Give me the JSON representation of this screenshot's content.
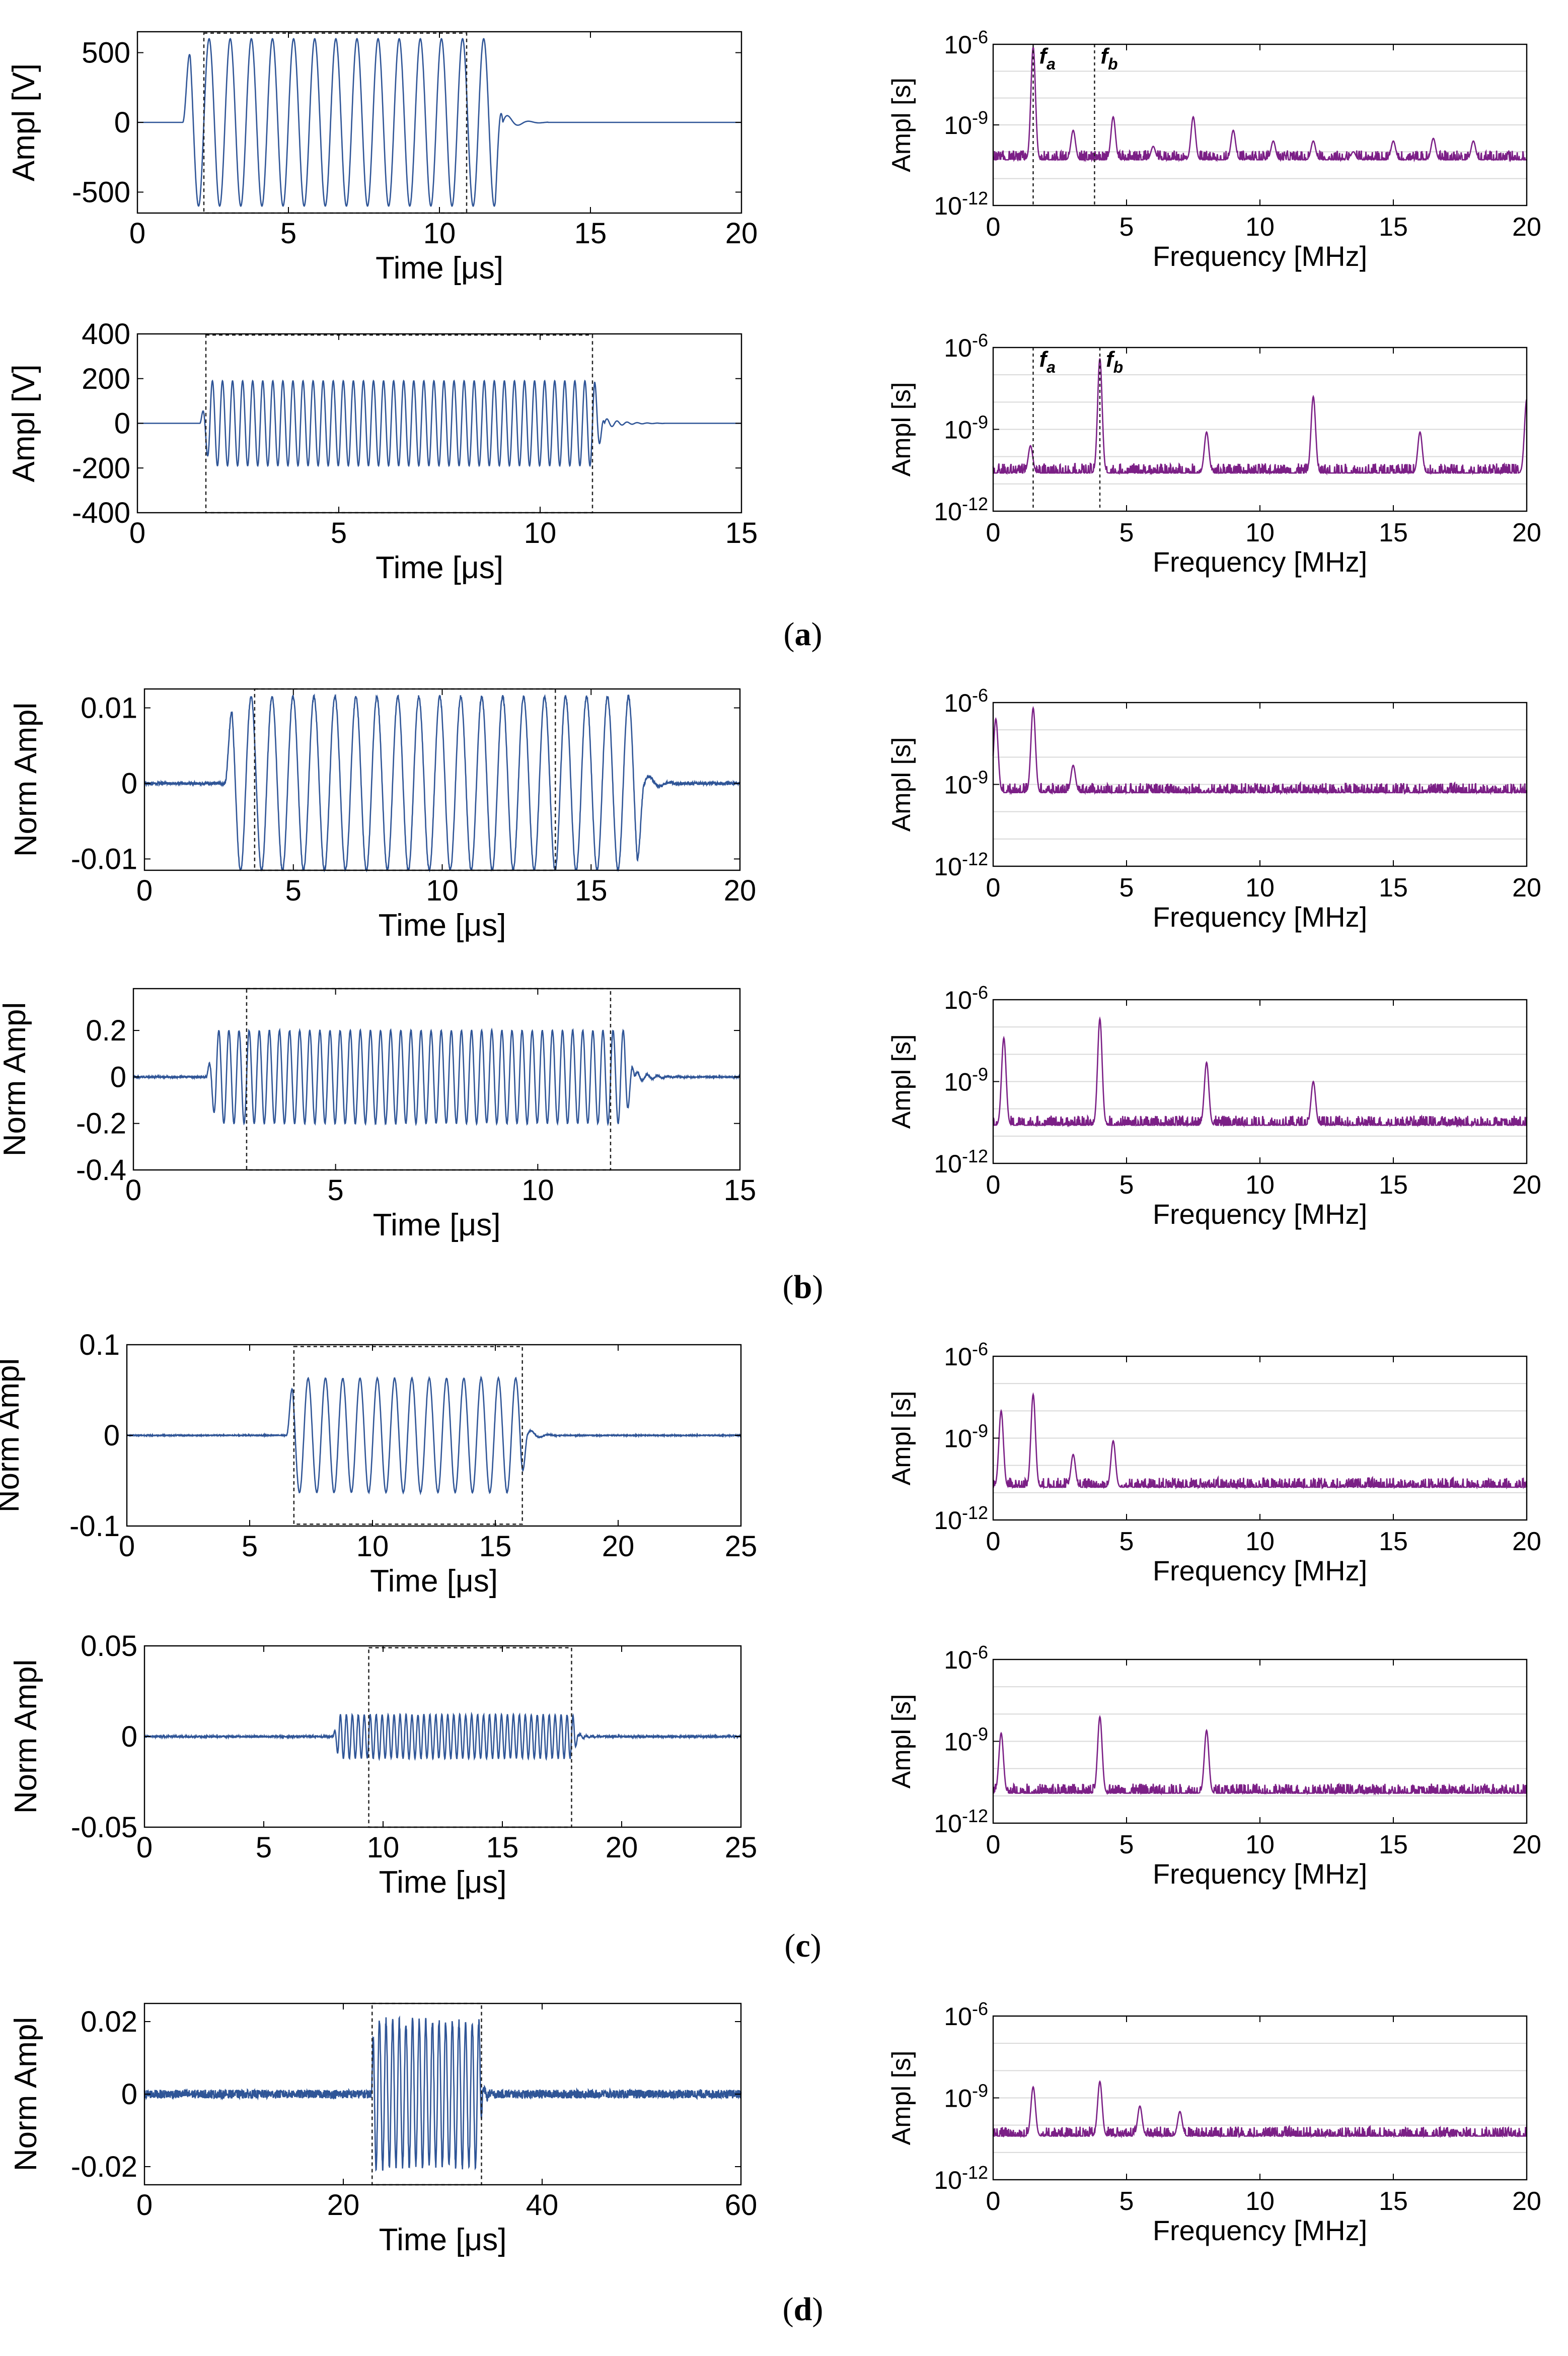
{
  "colors": {
    "time": "#2f5597",
    "freq": "#7b1f86",
    "axis": "#000000",
    "grid": "#d9d9d9",
    "box": "#222222"
  },
  "panels": [
    {
      "id": "a",
      "label_open": "(",
      "label_letter": "a",
      "label_close": ")"
    },
    {
      "id": "b",
      "label_open": "(",
      "label_letter": "b",
      "label_close": ")"
    },
    {
      "id": "c",
      "label_open": "(",
      "label_letter": "c",
      "label_close": ")"
    },
    {
      "id": "d",
      "label_open": "(",
      "label_letter": "d",
      "label_close": ")"
    }
  ],
  "chart_data": [
    {
      "id": "a1-time",
      "type": "line",
      "xlabel": "Time [μs]",
      "ylabel": "Ampl [V]",
      "xlim": [
        0,
        20
      ],
      "ylim": [
        -650,
        650
      ],
      "xticks": [
        0,
        5,
        10,
        15,
        20
      ],
      "yticks": [
        -500,
        0,
        500
      ],
      "signal": {
        "kind": "burst",
        "start": 1.5,
        "end": 12.1,
        "freq_mhz": 1.43,
        "amp": 600,
        "noise": 0
      },
      "window": [
        2.2,
        10.9
      ],
      "window_y": [
        -650,
        640
      ]
    },
    {
      "id": "a1-freq",
      "type": "line",
      "xlabel": "Frequency [MHz]",
      "ylabel": "Ampl [s]",
      "xlim": [
        0,
        20
      ],
      "yscale": "log",
      "ylim_exp": [
        -12,
        -6
      ],
      "xticks": [
        0,
        5,
        10,
        15,
        20
      ],
      "yticks_exp": [
        -12,
        -9,
        -6
      ],
      "spectrum": {
        "floor": -10.3,
        "peaks": [
          [
            1.5,
            -6.1
          ],
          [
            3.0,
            -9.2
          ],
          [
            4.5,
            -8.7
          ],
          [
            6.0,
            -9.8
          ],
          [
            7.5,
            -8.7
          ],
          [
            9.0,
            -9.2
          ],
          [
            10.5,
            -9.6
          ],
          [
            12.0,
            -9.6
          ],
          [
            13.5,
            -10.0
          ],
          [
            15.0,
            -9.6
          ],
          [
            16.5,
            -9.5
          ],
          [
            18.0,
            -9.6
          ]
        ]
      },
      "markers": [
        {
          "x": 1.5,
          "label": "f",
          "sub": "a"
        },
        {
          "x": 3.8,
          "label": "f",
          "sub": "b"
        }
      ]
    },
    {
      "id": "a2-time",
      "type": "line",
      "xlabel": "Time [μs]",
      "ylabel": "Ampl [V]",
      "xlim": [
        0,
        15
      ],
      "ylim": [
        -400,
        400
      ],
      "xticks": [
        0,
        5,
        10,
        15
      ],
      "yticks": [
        -400,
        -200,
        0,
        200,
        400
      ],
      "signal": {
        "kind": "burst",
        "start": 1.55,
        "end": 11.6,
        "freq_mhz": 4.0,
        "amp": 190,
        "noise": 0
      },
      "window": [
        1.7,
        11.3
      ],
      "window_y": [
        -400,
        395
      ]
    },
    {
      "id": "a2-freq",
      "type": "line",
      "xlabel": "Frequency [MHz]",
      "ylabel": "Ampl [s]",
      "xlim": [
        0,
        20
      ],
      "yscale": "log",
      "ylim_exp": [
        -12,
        -6
      ],
      "xticks": [
        0,
        5,
        10,
        15,
        20
      ],
      "yticks_exp": [
        -12,
        -9,
        -6
      ],
      "spectrum": {
        "floor": -10.6,
        "peaks": [
          [
            1.4,
            -9.6
          ],
          [
            4.0,
            -6.4
          ],
          [
            8.0,
            -9.1
          ],
          [
            12.0,
            -7.8
          ],
          [
            16.0,
            -9.1
          ],
          [
            20.0,
            -7.9
          ]
        ]
      },
      "markers": [
        {
          "x": 1.5,
          "label": "f",
          "sub": "a"
        },
        {
          "x": 4.0,
          "label": "f",
          "sub": "b"
        }
      ]
    },
    {
      "id": "b1-time",
      "type": "line",
      "xlabel": "Time [μs]",
      "ylabel": "Norm Ampl",
      "xlim": [
        0,
        20
      ],
      "ylim": [
        -0.0115,
        0.0125
      ],
      "xticks": [
        0,
        5,
        10,
        15,
        20
      ],
      "yticks": [
        -0.01,
        0,
        0.01
      ],
      "signal": {
        "kind": "burst",
        "start": 2.7,
        "end": 16.8,
        "freq_mhz": 1.42,
        "amp": 0.0115,
        "noise": 0.0002
      },
      "window": [
        3.7,
        13.8
      ],
      "window_y": [
        -0.0115,
        0.0125
      ]
    },
    {
      "id": "b1-freq",
      "type": "line",
      "xlabel": "Frequency [MHz]",
      "ylabel": "Ampl [s]",
      "xlim": [
        0,
        20
      ],
      "yscale": "log",
      "ylim_exp": [
        -12,
        -6
      ],
      "xticks": [
        0,
        5,
        10,
        15,
        20
      ],
      "yticks_exp": [
        -12,
        -9,
        -6
      ],
      "spectrum": {
        "floor": -9.3,
        "peaks": [
          [
            0.1,
            -6.6
          ],
          [
            1.5,
            -6.2
          ],
          [
            3.0,
            -8.3
          ]
        ]
      },
      "markers": []
    },
    {
      "id": "b2-time",
      "type": "line",
      "xlabel": "Time [μs]",
      "ylabel": "Norm Ampl",
      "xlim": [
        0,
        15
      ],
      "ylim": [
        -0.4,
        0.38
      ],
      "xticks": [
        0,
        5,
        10,
        15
      ],
      "yticks": [
        -0.4,
        -0.2,
        0,
        0.2
      ],
      "signal": {
        "kind": "burst",
        "start": 1.8,
        "end": 12.4,
        "freq_mhz": 4.0,
        "amp": 0.2,
        "noise": 0.003
      },
      "window": [
        2.8,
        11.8
      ],
      "window_y": [
        -0.4,
        0.38
      ]
    },
    {
      "id": "b2-freq",
      "type": "line",
      "xlabel": "Frequency [MHz]",
      "ylabel": "Ampl [s]",
      "xlim": [
        0,
        20
      ],
      "yscale": "log",
      "ylim_exp": [
        -12,
        -6
      ],
      "xticks": [
        0,
        5,
        10,
        15,
        20
      ],
      "yticks_exp": [
        -12,
        -9,
        -6
      ],
      "spectrum": {
        "floor": -10.6,
        "peaks": [
          [
            0.4,
            -7.4
          ],
          [
            4.0,
            -6.7
          ],
          [
            8.0,
            -8.3
          ],
          [
            12.0,
            -9.0
          ]
        ]
      },
      "markers": []
    },
    {
      "id": "c1-time",
      "type": "line",
      "xlabel": "Time [μs]",
      "ylabel": "Norm Ampl",
      "xlim": [
        0,
        25
      ],
      "ylim": [
        -0.1,
        0.1
      ],
      "xticks": [
        0,
        5,
        10,
        15,
        20,
        25
      ],
      "yticks": [
        -0.1,
        0,
        0.1
      ],
      "signal": {
        "kind": "burst",
        "start": 6.5,
        "end": 16.3,
        "freq_mhz": 1.42,
        "amp": 0.063,
        "noise": 0.0005
      },
      "window": [
        6.8,
        16.1
      ],
      "window_y": [
        -0.098,
        0.098
      ]
    },
    {
      "id": "c1-freq",
      "type": "line",
      "xlabel": "Frequency [MHz]",
      "ylabel": "Ampl [s]",
      "xlim": [
        0,
        20
      ],
      "yscale": "log",
      "ylim_exp": [
        -12,
        -6
      ],
      "xticks": [
        0,
        5,
        10,
        15,
        20
      ],
      "yticks_exp": [
        -12,
        -9,
        -6
      ],
      "spectrum": {
        "floor": -10.8,
        "peaks": [
          [
            0.3,
            -8.0
          ],
          [
            1.5,
            -7.4
          ],
          [
            3.0,
            -9.6
          ],
          [
            4.5,
            -9.1
          ]
        ]
      },
      "markers": []
    },
    {
      "id": "c2-time",
      "type": "line",
      "xlabel": "Time [μs]",
      "ylabel": "Norm Ampl",
      "xlim": [
        0,
        25
      ],
      "ylim": [
        -0.05,
        0.05
      ],
      "xticks": [
        0,
        5,
        10,
        15,
        20,
        25
      ],
      "yticks": [
        -0.05,
        0,
        0.05
      ],
      "signal": {
        "kind": "burst",
        "start": 7.9,
        "end": 18.2,
        "freq_mhz": 4.0,
        "amp": 0.012,
        "noise": 0.0004
      },
      "window": [
        9.4,
        17.9
      ],
      "window_y": [
        -0.05,
        0.049
      ]
    },
    {
      "id": "c2-freq",
      "type": "line",
      "xlabel": "Frequency [MHz]",
      "ylabel": "Ampl [s]",
      "xlim": [
        0,
        20
      ],
      "yscale": "log",
      "ylim_exp": [
        -12,
        -6
      ],
      "xticks": [
        0,
        5,
        10,
        15,
        20
      ],
      "yticks_exp": [
        -12,
        -9,
        -6
      ],
      "spectrum": {
        "floor": -10.9,
        "peaks": [
          [
            0.3,
            -8.7
          ],
          [
            4.0,
            -8.1
          ],
          [
            8.0,
            -8.6
          ]
        ]
      },
      "markers": []
    },
    {
      "id": "d1-time",
      "type": "line",
      "xlabel": "Time [μs]",
      "ylabel": "Norm Ampl",
      "xlim": [
        0,
        60
      ],
      "ylim": [
        -0.025,
        0.025
      ],
      "xticks": [
        0,
        20,
        40,
        60
      ],
      "yticks": [
        -0.02,
        0,
        0.02
      ],
      "signal": {
        "kind": "burst",
        "start": 22.8,
        "end": 34.0,
        "freq_mhz": 1.5,
        "amp": 0.02,
        "noise": 0.0012
      },
      "window": [
        22.9,
        33.9
      ],
      "window_y": [
        -0.025,
        0.025
      ]
    },
    {
      "id": "d1-freq",
      "type": "line",
      "xlabel": "Frequency [MHz]",
      "ylabel": "Ampl [s]",
      "xlim": [
        0,
        20
      ],
      "yscale": "log",
      "ylim_exp": [
        -12,
        -6
      ],
      "xticks": [
        0,
        5,
        10,
        15,
        20
      ],
      "yticks_exp": [
        -12,
        -9,
        -6
      ],
      "spectrum": {
        "floor": -10.4,
        "peaks": [
          [
            1.5,
            -8.6
          ],
          [
            4.0,
            -8.4
          ],
          [
            5.5,
            -9.3
          ],
          [
            7.0,
            -9.5
          ]
        ]
      },
      "markers": []
    }
  ]
}
